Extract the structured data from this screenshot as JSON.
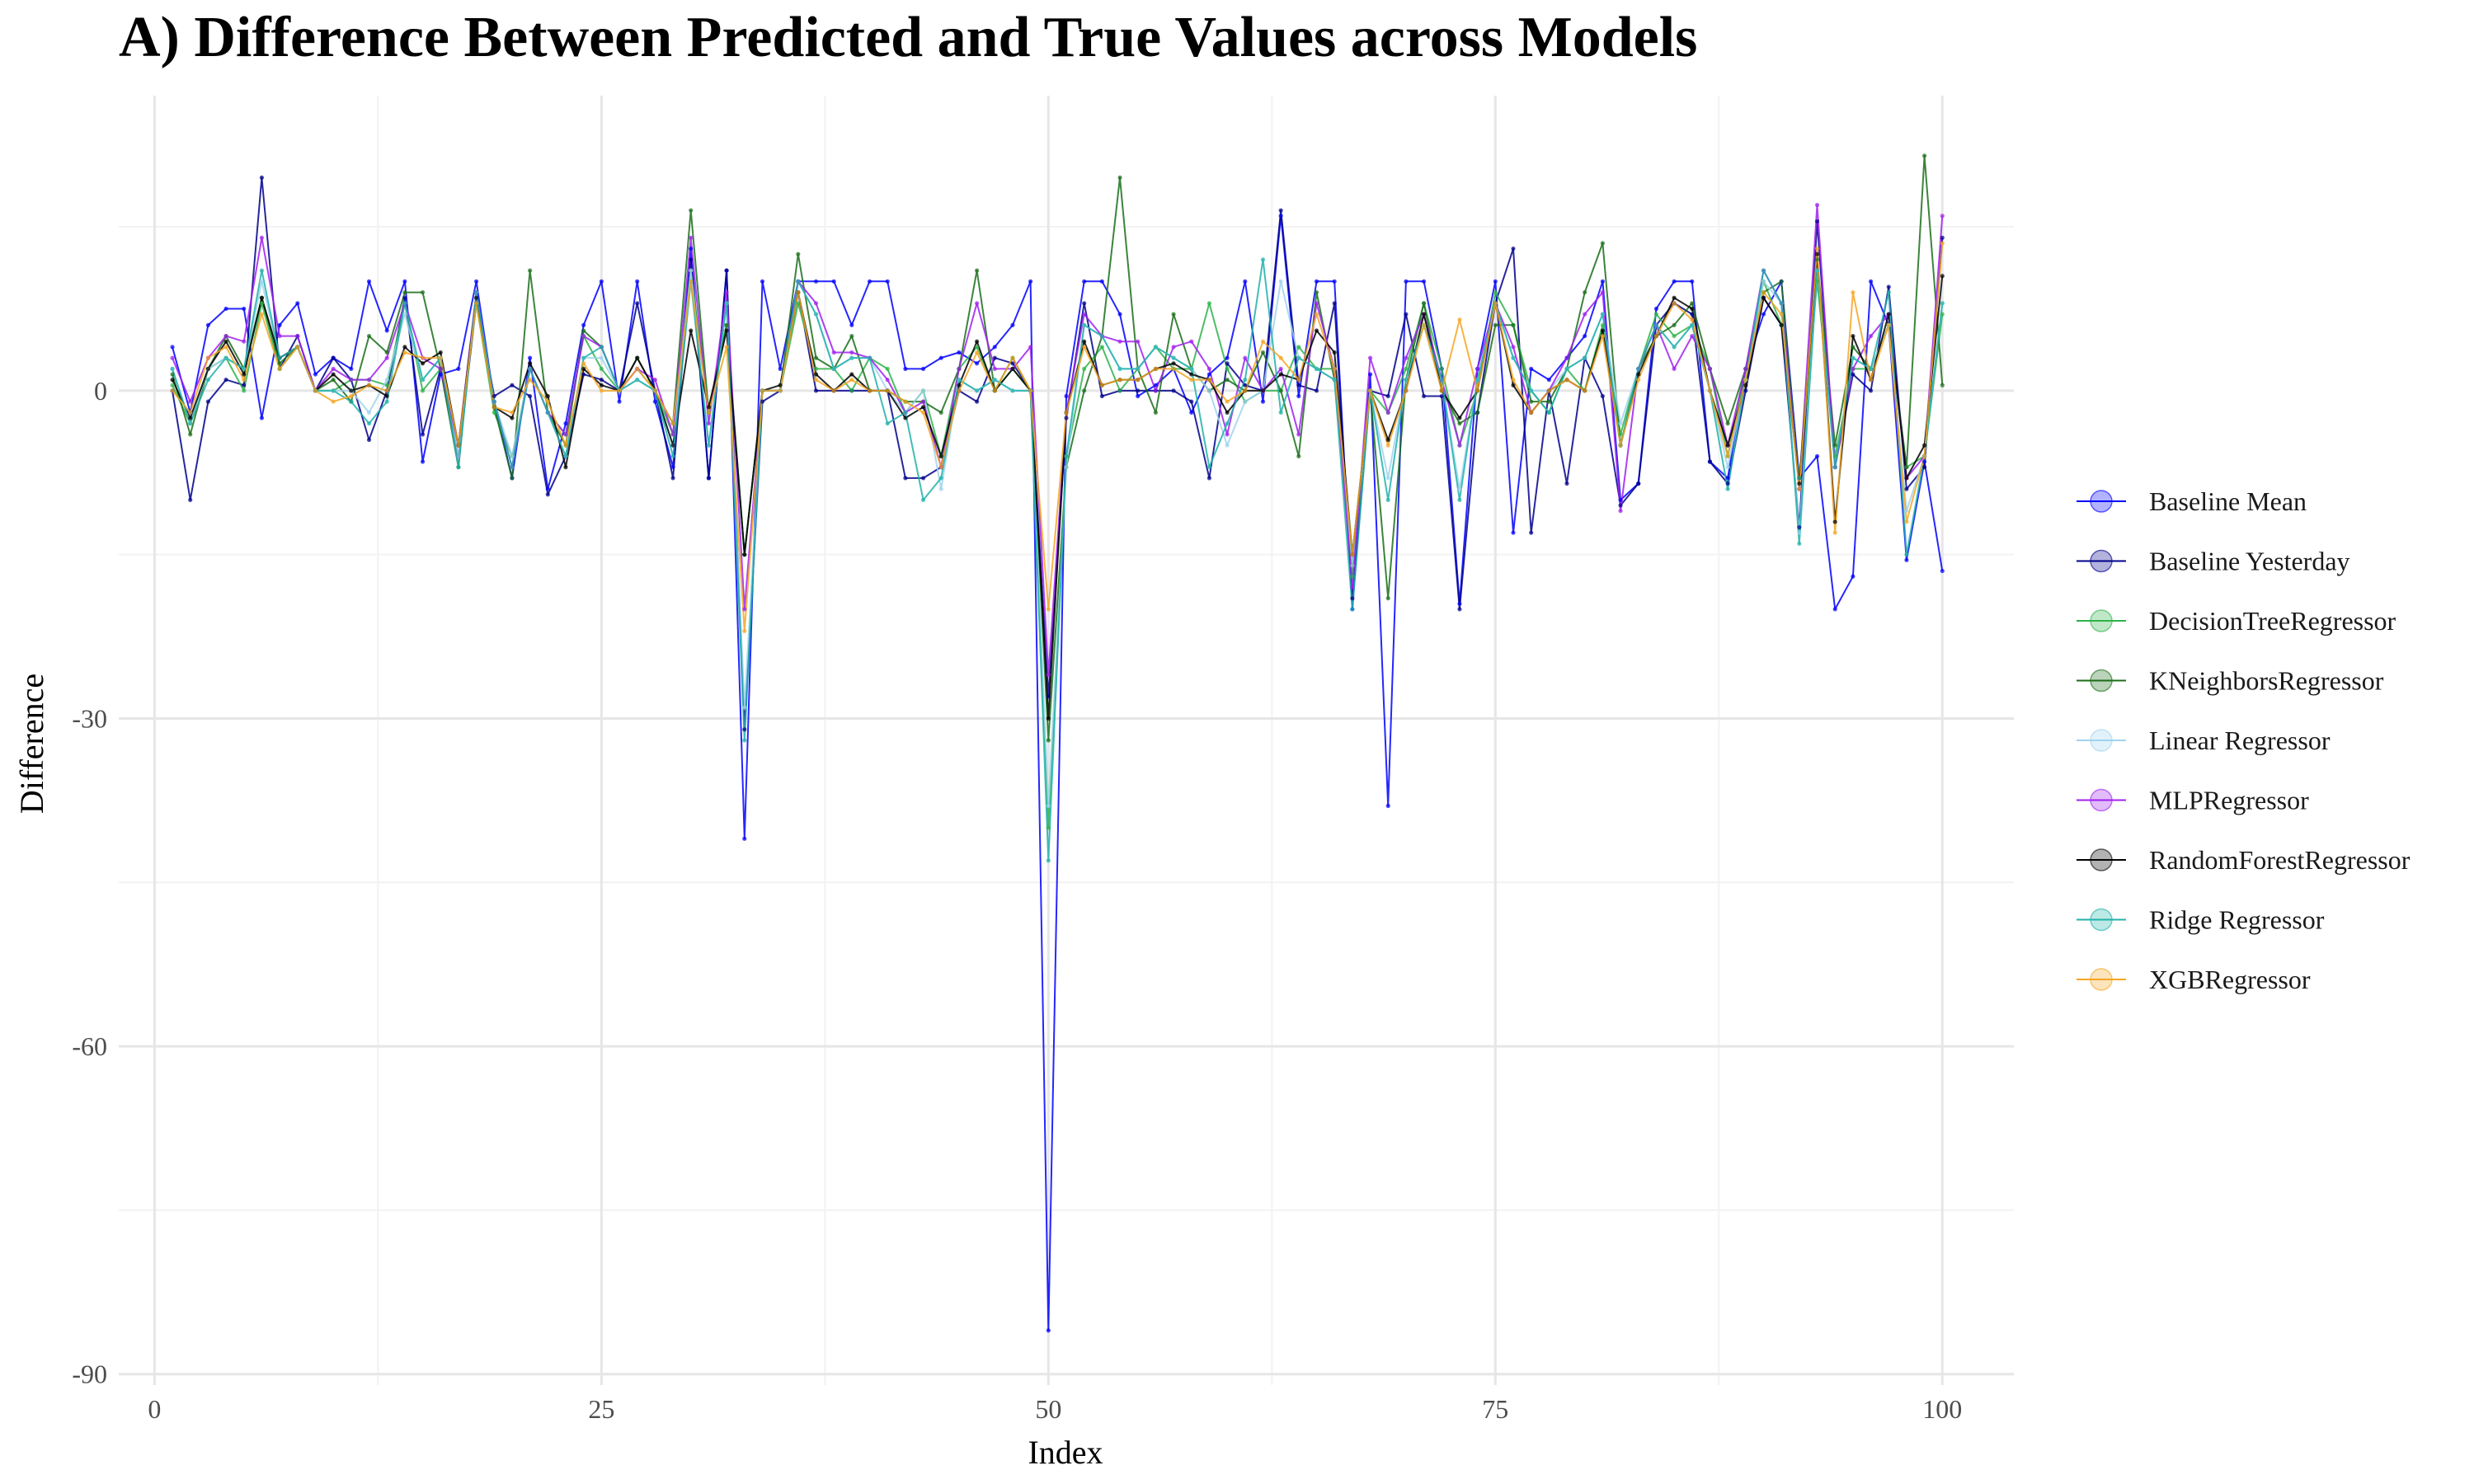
{
  "chart_data": {
    "type": "line",
    "title": "A) Difference Between Predicted and True Values across Models",
    "xlabel": "Index",
    "ylabel": "Difference",
    "xlim": [
      -2,
      104
    ],
    "ylim": [
      -91,
      27
    ],
    "xticks": [
      0,
      25,
      50,
      75,
      100
    ],
    "yticks": [
      0,
      -30,
      -60,
      -90
    ],
    "grid": true,
    "legend_position": "right",
    "x_start": 1,
    "series": [
      {
        "name": "Baseline Mean",
        "color": "#0000ff",
        "values": [
          4,
          -2,
          6,
          7.5,
          7.5,
          -2.5,
          6,
          8,
          1.5,
          3,
          2,
          10,
          5.5,
          10,
          -6.5,
          1.5,
          2,
          10,
          -1,
          -8,
          3,
          -9,
          -3,
          6,
          10,
          -1,
          10,
          -1,
          -7,
          13,
          -8,
          11,
          -41,
          10,
          2,
          10,
          10,
          10,
          6,
          10,
          10,
          2,
          2,
          3,
          3.5,
          2.5,
          4,
          6,
          10,
          -86,
          -0.5,
          10,
          10,
          7,
          -0.5,
          0.5,
          2,
          -2,
          1.5,
          3,
          10,
          -1,
          16,
          -0.5,
          10,
          10,
          -20,
          1.5,
          -38,
          10,
          10,
          2,
          -19.5,
          2,
          10,
          -13,
          2,
          1,
          3,
          5,
          10,
          -10,
          -8.5,
          7.5,
          10,
          10,
          -6.5,
          -8,
          2,
          7,
          10,
          -8,
          -6,
          -20,
          -17,
          10,
          6,
          -15.5,
          -6.5,
          -16.5
        ]
      },
      {
        "name": "Baseline Yesterday",
        "color": "#00008b",
        "values": [
          0,
          -10,
          -1,
          1,
          0.5,
          19.5,
          2,
          5,
          0,
          3,
          1,
          -4.5,
          0,
          8.5,
          -4,
          2,
          -6,
          8,
          -0.5,
          0.5,
          -0.5,
          -9.5,
          -6,
          1.5,
          1,
          0,
          8,
          0,
          -8,
          12,
          -8,
          11,
          -31,
          -1,
          0,
          9,
          0,
          0,
          0,
          0,
          0,
          -8,
          -8,
          -7,
          0,
          -1,
          3,
          2.5,
          0,
          -28,
          -2.5,
          8,
          -0.5,
          0,
          0,
          0,
          0,
          -1,
          -8,
          2.5,
          0.5,
          0,
          16.5,
          0.5,
          0,
          8,
          -19,
          0,
          -0.5,
          7,
          -0.5,
          -0.5,
          -20,
          -2,
          8,
          13,
          -13,
          0,
          -8.5,
          3,
          -0.5,
          -10.5,
          -8.5,
          6,
          8,
          7,
          -6.5,
          -8.5,
          0,
          8.5,
          6,
          -12.5,
          15.5,
          -7,
          1.5,
          0,
          9.5,
          -9,
          -7,
          14
        ]
      },
      {
        "name": "DecisionTreeRegressor",
        "color": "#2db34a",
        "values": [
          0.5,
          -3,
          2,
          3,
          0,
          8,
          2,
          4,
          0,
          0,
          1,
          1,
          0.5,
          8,
          0,
          2,
          -5,
          8,
          -2,
          -6,
          2,
          -2,
          -4,
          5,
          2,
          0,
          2,
          0,
          -4,
          11,
          -2,
          6,
          -15,
          0,
          0,
          8,
          2,
          2,
          0,
          3,
          2,
          -2,
          0,
          -6,
          2,
          4,
          0,
          2,
          0,
          -40,
          -6,
          2,
          4,
          0,
          2,
          4,
          2,
          2,
          8,
          2,
          -1,
          0,
          0,
          4,
          2,
          2,
          -17,
          0,
          -2,
          2,
          8,
          2,
          -5,
          0,
          9,
          6,
          0,
          -2,
          2,
          0,
          6,
          -4,
          2,
          7,
          5,
          6,
          2,
          -6,
          2,
          10,
          6,
          -8,
          10,
          -6,
          2,
          2,
          6,
          -7,
          -6,
          7
        ]
      },
      {
        "name": "KNeighborsRegressor",
        "color": "#1a6e1a",
        "values": [
          1.5,
          -4,
          2,
          5,
          2,
          8.5,
          2.5,
          4,
          0,
          1,
          -1,
          5,
          3.5,
          9,
          9,
          2,
          -7,
          9,
          -1.5,
          -8,
          11,
          -2,
          -5,
          5.5,
          4,
          0,
          3,
          0,
          -3,
          16.5,
          -2,
          6,
          -15,
          0,
          0,
          12.5,
          3,
          2,
          5,
          0,
          0,
          -1,
          -1,
          -2,
          2,
          11,
          0,
          3,
          0,
          -32,
          -7,
          0,
          5,
          19.5,
          2,
          -2,
          7,
          2,
          0,
          1,
          0,
          3.5,
          0,
          -6,
          9,
          1,
          -16,
          0,
          -19,
          1,
          8,
          0,
          -3,
          -2,
          6,
          6,
          -1,
          -1,
          2,
          9,
          13.5,
          -5,
          2,
          5,
          6,
          8,
          2,
          -3,
          2,
          9,
          10,
          -9,
          12,
          -5,
          4,
          2,
          6,
          -7,
          21.5,
          0.5
        ]
      },
      {
        "name": "Linear Regressor",
        "color": "#9fd3ef",
        "values": [
          2,
          -3,
          2,
          3,
          2,
          10,
          3,
          4,
          0,
          0,
          0,
          -2,
          1,
          7,
          1,
          3,
          -6,
          9,
          -1,
          -6,
          2,
          -2,
          -6,
          3,
          3,
          0,
          1,
          0,
          -5,
          11,
          -5,
          8,
          -29,
          0,
          0,
          10,
          7,
          2,
          3,
          3,
          0,
          -2,
          0,
          -9,
          1,
          0,
          1,
          0,
          0,
          -38,
          -7,
          6,
          5,
          2,
          2,
          4,
          3,
          2,
          0,
          -5,
          -1,
          0,
          10,
          3,
          2,
          1,
          -16,
          0,
          -8,
          1,
          6,
          1,
          -9,
          1,
          8,
          3,
          0,
          0,
          2,
          3,
          7,
          -3,
          2,
          6,
          4,
          6,
          0,
          -7,
          1,
          10,
          8,
          -13,
          11,
          -7,
          3,
          2,
          6,
          -11,
          -6,
          8
        ]
      },
      {
        "name": "MLPRegressor",
        "color": "#a020f0",
        "values": [
          3,
          -1,
          3,
          5,
          4.5,
          14,
          5,
          5,
          0,
          2,
          1,
          1,
          3,
          8,
          3,
          2,
          -5,
          9,
          -1,
          -7,
          2,
          -2,
          -4,
          5,
          4,
          0,
          2,
          1,
          -4,
          14,
          -3,
          9,
          -20,
          0,
          0,
          10,
          8,
          3.5,
          3.5,
          3,
          1,
          -2,
          -1,
          -7,
          2,
          8,
          2,
          2,
          4,
          -26,
          -2,
          7,
          5,
          4.5,
          4.5,
          0,
          4,
          4.5,
          2,
          -4,
          3,
          0,
          2,
          -4,
          8,
          2,
          -18,
          3,
          -2,
          3,
          7,
          1,
          -5,
          2,
          8,
          4,
          -2,
          0,
          3,
          7,
          9,
          -11,
          2,
          6,
          2,
          5,
          2,
          -5,
          2,
          11,
          8,
          -9,
          17,
          -7,
          2,
          5,
          7,
          -8,
          -6,
          16
        ]
      },
      {
        "name": "RandomForestRegressor",
        "color": "#000000",
        "values": [
          1,
          -2.5,
          2,
          4.5,
          1.5,
          8.5,
          3,
          4,
          0,
          1.5,
          0,
          0.5,
          -0.5,
          4,
          2.5,
          3.5,
          -5,
          8.5,
          -1.5,
          -2.5,
          2.5,
          -0.5,
          -7,
          2,
          0.5,
          0,
          3,
          0,
          -5,
          5.5,
          -1.5,
          5.5,
          -15,
          0,
          0.5,
          9,
          1.5,
          0,
          1.5,
          0,
          0,
          -2.5,
          -1.5,
          -6,
          0.5,
          4.5,
          0,
          2,
          0,
          -30,
          -2,
          4.5,
          0.5,
          1,
          1,
          2,
          2.5,
          1.5,
          1,
          -2,
          0,
          0,
          1.5,
          1,
          5.5,
          3.5,
          -15,
          0,
          -4.5,
          0,
          7,
          0,
          -2.5,
          0,
          8,
          0.5,
          -2,
          0,
          1,
          0,
          5.5,
          -5,
          1.5,
          5,
          8.5,
          7.5,
          0,
          -5,
          0.5,
          8.5,
          6,
          -8.5,
          12.5,
          -12,
          5,
          1,
          7,
          -8,
          -5,
          10.5
        ]
      },
      {
        "name": "Ridge Regressor",
        "color": "#20b2aa",
        "values": [
          2,
          -3,
          1,
          3,
          2,
          11,
          3,
          4,
          0,
          0,
          -1,
          -3,
          -1,
          8,
          1,
          3,
          -7,
          9,
          -1,
          -7,
          2,
          -2,
          -6,
          3,
          4,
          0,
          1,
          0,
          -6,
          10,
          -5,
          8,
          -32,
          0,
          0,
          10,
          7,
          2,
          3,
          3,
          -3,
          -2,
          -10,
          -8,
          1,
          0,
          1,
          0,
          0,
          -43,
          -6,
          6,
          5,
          2,
          2,
          4,
          3,
          2,
          -7,
          -3,
          1,
          12,
          -2,
          3,
          2,
          1,
          -20,
          0,
          -10,
          1,
          6,
          1,
          -10,
          1,
          8,
          3,
          0,
          -2,
          2,
          3,
          7,
          -5,
          2,
          6,
          4,
          6,
          0,
          -9,
          1,
          11,
          8,
          -14,
          11,
          -7,
          3,
          2,
          9,
          -15,
          -6,
          8
        ]
      },
      {
        "name": "XGBRegressor",
        "color": "#f5a623",
        "values": [
          0,
          -2,
          3,
          4,
          1,
          7,
          2,
          4,
          0,
          -1,
          -0.5,
          0.5,
          0,
          3.5,
          3,
          3,
          -5,
          8,
          -1.5,
          -2,
          1,
          -1,
          -5,
          2.5,
          0,
          0,
          2,
          0,
          -3,
          10,
          -2,
          4,
          -22,
          0,
          0,
          9,
          1,
          0,
          1,
          0,
          0,
          -1,
          -2,
          -7,
          0,
          3.5,
          0,
          3,
          0,
          -20,
          -2,
          4,
          0.5,
          1,
          1,
          2,
          2,
          1,
          1,
          -1,
          0,
          4.5,
          3,
          1,
          7,
          2,
          -15,
          0,
          -5,
          0,
          6,
          0,
          6.5,
          0,
          8,
          1,
          -2,
          0,
          1,
          0,
          5,
          -5,
          1,
          5,
          8,
          6.5,
          0,
          -6,
          1,
          9,
          7,
          -9,
          13,
          -13,
          9,
          1,
          6,
          -12,
          -6,
          13.5
        ]
      }
    ]
  }
}
